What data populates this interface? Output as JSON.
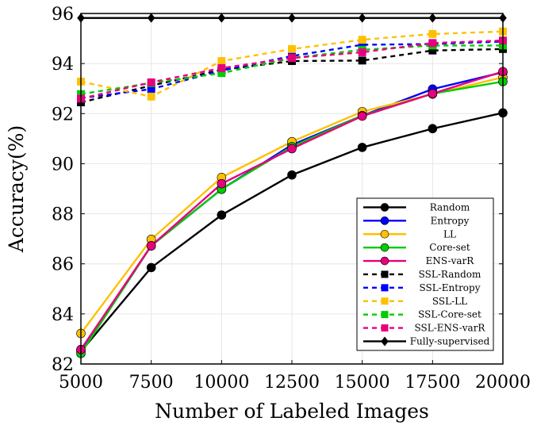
{
  "chart_data": {
    "type": "line",
    "title": "",
    "xlabel": "Number of Labeled Images",
    "ylabel": "Accuracy(%)",
    "x": [
      5000,
      7500,
      10000,
      12500,
      15000,
      17500,
      20000
    ],
    "x_tick_labels": [
      "5000",
      "7500",
      "10000",
      "12500",
      "15000",
      "17500",
      "20000"
    ],
    "y_ticks": [
      82,
      84,
      86,
      88,
      90,
      92,
      94,
      96
    ],
    "y_tick_labels": [
      "82",
      "84",
      "86",
      "88",
      "90",
      "92",
      "94",
      "96"
    ],
    "xlim": [
      5000,
      20000
    ],
    "ylim": [
      82,
      96
    ],
    "grid": true,
    "legend_position": "bottom-right",
    "series": [
      {
        "name": "Random",
        "color": "#000000",
        "dash": "solid",
        "marker": "circle",
        "values": [
          82.5,
          85.85,
          87.95,
          89.55,
          90.65,
          91.4,
          92.03
        ]
      },
      {
        "name": "Entropy",
        "color": "#0000ff",
        "dash": "solid",
        "marker": "circle",
        "values": [
          82.55,
          86.72,
          88.98,
          90.75,
          91.92,
          92.98,
          93.65
        ]
      },
      {
        "name": "LL",
        "color": "#ffc000",
        "dash": "solid",
        "marker": "circle",
        "values": [
          83.22,
          86.98,
          89.45,
          90.88,
          92.08,
          92.78,
          93.45
        ]
      },
      {
        "name": "Core-set",
        "color": "#00cc00",
        "dash": "solid",
        "marker": "circle",
        "values": [
          82.42,
          86.72,
          88.98,
          90.68,
          91.92,
          92.8,
          93.28
        ]
      },
      {
        "name": "ENS-varR",
        "color": "#e6007e",
        "dash": "solid",
        "marker": "circle",
        "values": [
          82.58,
          86.72,
          89.2,
          90.6,
          91.9,
          92.8,
          93.68
        ]
      },
      {
        "name": "SSL-Random",
        "color": "#000000",
        "dash": "dashed",
        "marker": "square",
        "values": [
          92.45,
          93.12,
          93.75,
          94.1,
          94.12,
          94.52,
          94.58
        ]
      },
      {
        "name": "SSL-Entropy",
        "color": "#0000ff",
        "dash": "dashed",
        "marker": "square",
        "values": [
          92.62,
          92.98,
          93.72,
          94.3,
          94.75,
          94.78,
          94.88
        ]
      },
      {
        "name": "SSL-LL",
        "color": "#ffc000",
        "dash": "dashed",
        "marker": "square",
        "values": [
          93.28,
          92.68,
          94.1,
          94.58,
          94.95,
          95.18,
          95.28
        ]
      },
      {
        "name": "SSL-Core-set",
        "color": "#00cc00",
        "dash": "dashed",
        "marker": "square",
        "values": [
          92.78,
          93.22,
          93.62,
          94.22,
          94.55,
          94.72,
          94.72
        ]
      },
      {
        "name": "SSL-ENS-varR",
        "color": "#e6007e",
        "dash": "dashed",
        "marker": "square",
        "values": [
          92.6,
          93.25,
          93.82,
          94.22,
          94.45,
          94.82,
          94.92
        ]
      },
      {
        "name": "Fully-supervised",
        "color": "#000000",
        "dash": "solid",
        "marker": "diamond",
        "values": [
          95.82,
          95.82,
          95.82,
          95.82,
          95.82,
          95.82,
          95.82
        ]
      }
    ]
  }
}
